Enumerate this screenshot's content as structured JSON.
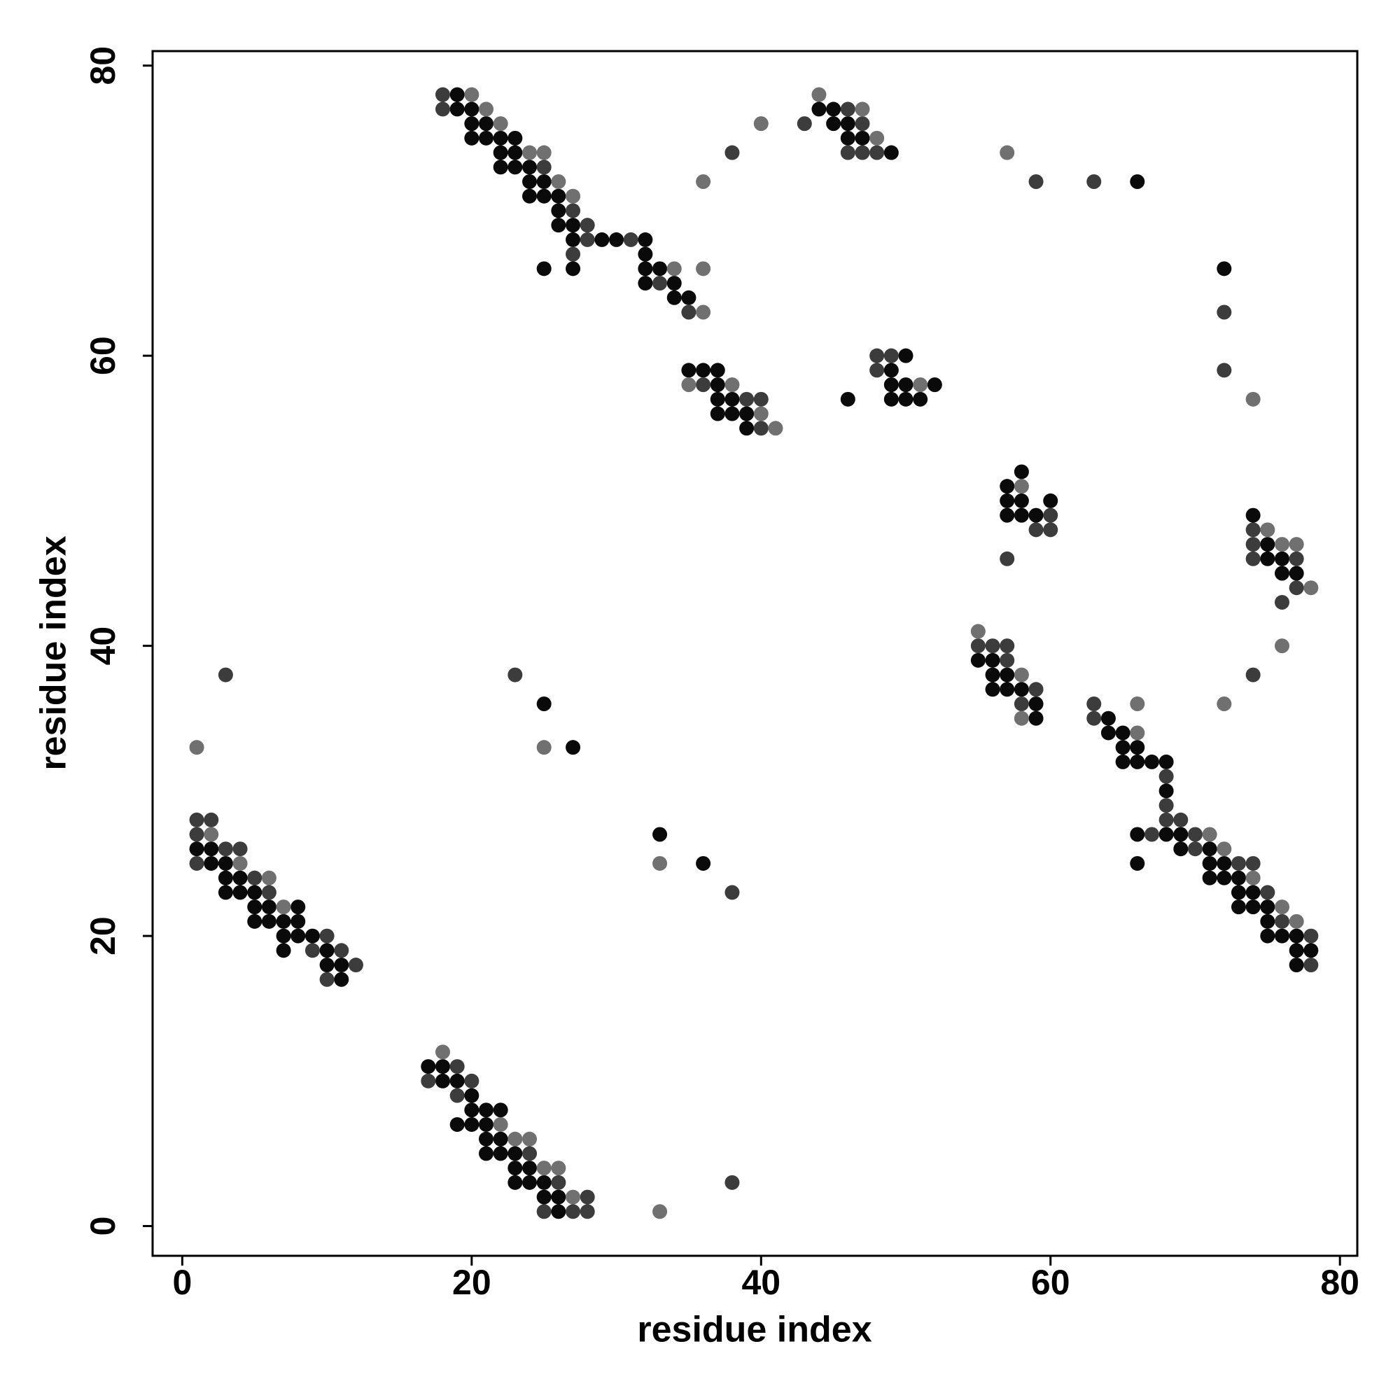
{
  "chart_data": {
    "type": "scatter",
    "xlabel": "residue index",
    "ylabel": "residue index",
    "xlim": [
      -2.05,
      81.2
    ],
    "ylim": [
      -2.05,
      81.0
    ],
    "xticks": [
      0,
      20,
      40,
      60,
      80
    ],
    "yticks": [
      0,
      20,
      40,
      60,
      80
    ],
    "grid": false,
    "series": [
      {
        "color": "#0a0a0a",
        "x": [
          19,
          19,
          20,
          20,
          21,
          20,
          21,
          22,
          23,
          22,
          23,
          22,
          23,
          24,
          24,
          25,
          24,
          25,
          26,
          26,
          26,
          27,
          27,
          29,
          30,
          32,
          32,
          25,
          27,
          32,
          33,
          32,
          34,
          34,
          35,
          44,
          45,
          45,
          46,
          46,
          47,
          49,
          66,
          72,
          35,
          36,
          37,
          37,
          37,
          38,
          37,
          38,
          39,
          39,
          50,
          49,
          49,
          50,
          52,
          46,
          49,
          50,
          51,
          58,
          57,
          57,
          58,
          60,
          57,
          58,
          59,
          74,
          75,
          75,
          76,
          76,
          77,
          55,
          56,
          56,
          57,
          56,
          57,
          58,
          59,
          59,
          64,
          64,
          65,
          65,
          66,
          65,
          66,
          67,
          68,
          68,
          66,
          68,
          69,
          69,
          71,
          66,
          71,
          72,
          71,
          72,
          73,
          73,
          74,
          73,
          74,
          75,
          75,
          75,
          76,
          77,
          77,
          78,
          77,
          25,
          27,
          33,
          36,
          1,
          2,
          2,
          3,
          3,
          4,
          3,
          4,
          5,
          5,
          6,
          8,
          5,
          6,
          7,
          8,
          7,
          8,
          9,
          7,
          10,
          10,
          11,
          11,
          17,
          18,
          18,
          19,
          20,
          20,
          21,
          22,
          19,
          20,
          21,
          21,
          22,
          21,
          22,
          23,
          23,
          24,
          23,
          24,
          25,
          25,
          26,
          26
        ],
        "values": [
          78,
          77,
          77,
          76,
          76,
          75,
          75,
          75,
          75,
          74,
          74,
          73,
          73,
          73,
          72,
          72,
          71,
          71,
          71,
          70,
          69,
          69,
          68,
          68,
          68,
          68,
          67,
          66,
          66,
          66,
          66,
          65,
          65,
          64,
          64,
          77,
          77,
          76,
          76,
          75,
          75,
          74,
          72,
          66,
          59,
          59,
          59,
          58,
          57,
          57,
          56,
          56,
          56,
          55,
          60,
          59,
          58,
          58,
          58,
          57,
          57,
          57,
          57,
          52,
          51,
          50,
          50,
          50,
          49,
          49,
          49,
          49,
          47,
          46,
          46,
          45,
          45,
          39,
          39,
          38,
          38,
          37,
          37,
          37,
          36,
          35,
          35,
          34,
          34,
          33,
          33,
          32,
          32,
          32,
          32,
          30,
          27,
          27,
          27,
          26,
          26,
          25,
          25,
          25,
          24,
          24,
          24,
          23,
          23,
          22,
          22,
          22,
          21,
          20,
          20,
          20,
          19,
          19,
          18,
          36,
          33,
          27,
          25,
          26,
          26,
          25,
          25,
          24,
          24,
          23,
          23,
          23,
          22,
          22,
          22,
          21,
          21,
          21,
          21,
          20,
          20,
          20,
          19,
          19,
          18,
          18,
          17,
          11,
          11,
          10,
          10,
          9,
          8,
          8,
          8,
          7,
          7,
          7,
          6,
          6,
          5,
          5,
          5,
          4,
          4,
          3,
          3,
          3,
          2,
          2,
          1
        ]
      },
      {
        "color": "#3c3c3c",
        "x": [
          18,
          18,
          25,
          27,
          28,
          28,
          31,
          27,
          33,
          35,
          38,
          46,
          43,
          47,
          46,
          47,
          48,
          59,
          63,
          72,
          72,
          36,
          39,
          40,
          40,
          48,
          49,
          48,
          60,
          59,
          60,
          57,
          74,
          74,
          74,
          77,
          77,
          76,
          74,
          55,
          56,
          57,
          57,
          59,
          58,
          63,
          63,
          68,
          68,
          68,
          69,
          67,
          70,
          70,
          73,
          74,
          75,
          76,
          78,
          78,
          3,
          23,
          38,
          1,
          2,
          1,
          3,
          4,
          1,
          5,
          6,
          10,
          9,
          11,
          12,
          10,
          19,
          17,
          20,
          19,
          24,
          26,
          28,
          25,
          27,
          28,
          38
        ],
        "values": [
          78,
          77,
          73,
          70,
          69,
          68,
          68,
          67,
          65,
          63,
          74,
          77,
          76,
          76,
          74,
          74,
          74,
          72,
          72,
          63,
          59,
          58,
          57,
          57,
          55,
          60,
          60,
          59,
          49,
          48,
          48,
          46,
          48,
          47,
          46,
          46,
          44,
          43,
          38,
          40,
          40,
          40,
          39,
          37,
          36,
          36,
          35,
          31,
          29,
          28,
          28,
          27,
          27,
          26,
          25,
          25,
          23,
          21,
          20,
          18,
          38,
          38,
          23,
          28,
          28,
          27,
          26,
          26,
          25,
          24,
          23,
          20,
          19,
          19,
          18,
          17,
          11,
          10,
          10,
          9,
          5,
          3,
          2,
          1,
          1,
          1,
          3
        ]
      },
      {
        "color": "#707070",
        "x": [
          20,
          21,
          22,
          24,
          25,
          26,
          27,
          34,
          36,
          36,
          36,
          40,
          44,
          47,
          48,
          57,
          74,
          35,
          38,
          40,
          41,
          51,
          58,
          75,
          76,
          77,
          78,
          76,
          72,
          55,
          58,
          58,
          66,
          66,
          71,
          72,
          74,
          76,
          77,
          1,
          25,
          33,
          33,
          2,
          4,
          6,
          7,
          18,
          22,
          23,
          24,
          25,
          26,
          27
        ],
        "values": [
          78,
          77,
          76,
          74,
          74,
          72,
          71,
          66,
          66,
          63,
          72,
          76,
          78,
          77,
          75,
          74,
          57,
          58,
          58,
          56,
          55,
          58,
          51,
          48,
          47,
          47,
          44,
          40,
          36,
          41,
          38,
          35,
          36,
          34,
          27,
          26,
          24,
          22,
          21,
          33,
          33,
          25,
          1,
          27,
          25,
          24,
          22,
          12,
          7,
          6,
          6,
          4,
          4,
          2
        ]
      }
    ]
  }
}
